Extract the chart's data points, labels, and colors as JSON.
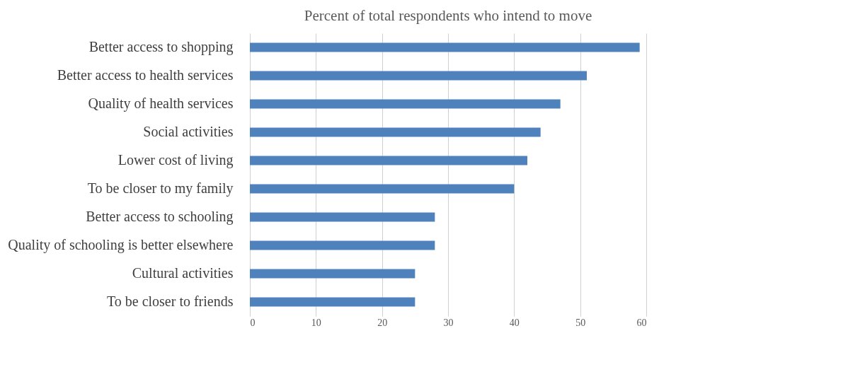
{
  "chart_data": {
    "type": "bar",
    "orientation": "horizontal",
    "title": "Percent of total respondents who intend to move",
    "categories": [
      "Better access to shopping",
      "Better access to health services",
      "Quality of health services",
      "Social activities",
      "Lower cost of living",
      "To be closer to my family",
      "Better access to schooling",
      "Quality of schooling is better elsewhere",
      "Cultural activities",
      "To be closer to friends"
    ],
    "values": [
      59,
      51,
      47,
      44,
      42,
      40,
      28,
      28,
      25,
      25
    ],
    "color": "#4f81bd",
    "xlim": [
      0,
      60
    ],
    "xticks": [
      0,
      10,
      20,
      30,
      40,
      50,
      60
    ],
    "grid": "x"
  }
}
